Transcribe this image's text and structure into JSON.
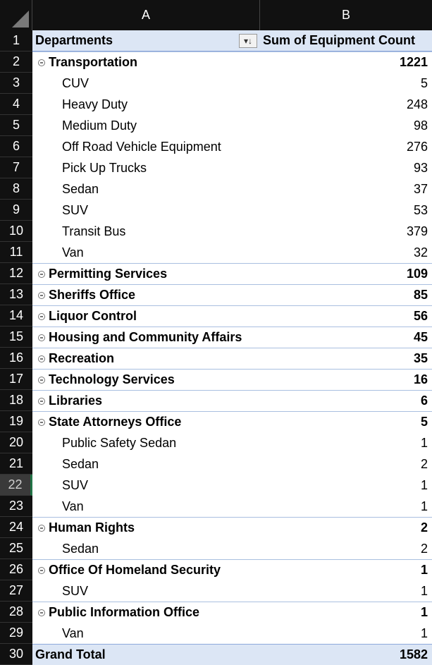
{
  "columns": {
    "a": "A",
    "b": "B"
  },
  "header": {
    "departments": "Departments",
    "sum_label": "Sum of Equipment Count",
    "filter_glyph": "▾↓"
  },
  "rows": [
    {
      "num": "2",
      "label": "Transportation",
      "value": "1221",
      "kind": "dept"
    },
    {
      "num": "3",
      "label": "CUV",
      "value": "5",
      "kind": "sub"
    },
    {
      "num": "4",
      "label": "Heavy Duty",
      "value": "248",
      "kind": "sub"
    },
    {
      "num": "5",
      "label": "Medium Duty",
      "value": "98",
      "kind": "sub"
    },
    {
      "num": "6",
      "label": "Off Road Vehicle Equipment",
      "value": "276",
      "kind": "sub"
    },
    {
      "num": "7",
      "label": "Pick Up Trucks",
      "value": "93",
      "kind": "sub"
    },
    {
      "num": "8",
      "label": "Sedan",
      "value": "37",
      "kind": "sub"
    },
    {
      "num": "9",
      "label": "SUV",
      "value": "53",
      "kind": "sub"
    },
    {
      "num": "10",
      "label": "Transit Bus",
      "value": "379",
      "kind": "sub"
    },
    {
      "num": "11",
      "label": "Van",
      "value": "32",
      "kind": "sub"
    },
    {
      "num": "12",
      "label": "Permitting Services",
      "value": "109",
      "kind": "dept"
    },
    {
      "num": "13",
      "label": "Sheriffs Office",
      "value": "85",
      "kind": "dept"
    },
    {
      "num": "14",
      "label": "Liquor Control",
      "value": "56",
      "kind": "dept"
    },
    {
      "num": "15",
      "label": "Housing and Community Affairs",
      "value": "45",
      "kind": "dept"
    },
    {
      "num": "16",
      "label": "Recreation",
      "value": "35",
      "kind": "dept"
    },
    {
      "num": "17",
      "label": "Technology Services",
      "value": "16",
      "kind": "dept"
    },
    {
      "num": "18",
      "label": "Libraries",
      "value": "6",
      "kind": "dept"
    },
    {
      "num": "19",
      "label": "State Attorneys Office",
      "value": "5",
      "kind": "dept"
    },
    {
      "num": "20",
      "label": "Public Safety Sedan",
      "value": "1",
      "kind": "sub"
    },
    {
      "num": "21",
      "label": "Sedan",
      "value": "2",
      "kind": "sub"
    },
    {
      "num": "22",
      "label": "SUV",
      "value": "1",
      "kind": "sub",
      "selected": true
    },
    {
      "num": "23",
      "label": "Van",
      "value": "1",
      "kind": "sub"
    },
    {
      "num": "24",
      "label": "Human Rights",
      "value": "2",
      "kind": "dept"
    },
    {
      "num": "25",
      "label": "Sedan",
      "value": "2",
      "kind": "sub"
    },
    {
      "num": "26",
      "label": "Office Of Homeland Security",
      "value": "1",
      "kind": "dept"
    },
    {
      "num": "27",
      "label": "SUV",
      "value": "1",
      "kind": "sub"
    },
    {
      "num": "28",
      "label": "Public Information Office",
      "value": "1",
      "kind": "dept"
    },
    {
      "num": "29",
      "label": "Van",
      "value": "1",
      "kind": "sub"
    }
  ],
  "header_row_num": "1",
  "total": {
    "num": "30",
    "label": "Grand Total",
    "value": "1582"
  },
  "colors": {
    "header_bg": "#111111",
    "pivot_header_bg": "#dce6f5",
    "border_blue": "#a9bfe0",
    "selected_row_accent": "#217346"
  }
}
